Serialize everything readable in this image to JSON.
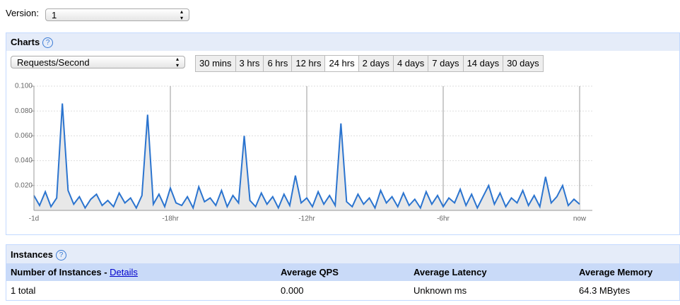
{
  "version": {
    "label": "Version:",
    "selected": "1"
  },
  "charts_panel": {
    "title": "Charts",
    "help": "?",
    "metric": "Requests/Second",
    "ranges": [
      "30 mins",
      "3 hrs",
      "6 hrs",
      "12 hrs",
      "24 hrs",
      "2 days",
      "4 days",
      "7 days",
      "14 days",
      "30 days"
    ]
  },
  "chart_data": {
    "type": "line",
    "color": "#2b74cf",
    "grid": true,
    "x": [
      -24,
      -23.75,
      -23.5,
      -23.25,
      -23,
      -22.75,
      -22.5,
      -22.25,
      -22,
      -21.75,
      -21.5,
      -21.25,
      -21,
      -20.75,
      -20.5,
      -20.25,
      -20,
      -19.75,
      -19.5,
      -19.25,
      -19,
      -18.75,
      -18.5,
      -18.25,
      -18,
      -17.75,
      -17.5,
      -17.25,
      -17,
      -16.75,
      -16.5,
      -16.25,
      -16,
      -15.75,
      -15.5,
      -15.25,
      -15,
      -14.75,
      -14.5,
      -14.25,
      -14,
      -13.75,
      -13.5,
      -13.25,
      -13,
      -12.75,
      -12.5,
      -12.25,
      -12,
      -11.75,
      -11.5,
      -11.25,
      -11,
      -10.75,
      -10.5,
      -10.25,
      -10,
      -9.75,
      -9.5,
      -9.25,
      -9,
      -8.75,
      -8.5,
      -8.25,
      -8,
      -7.75,
      -7.5,
      -7.25,
      -7,
      -6.75,
      -6.5,
      -6.25,
      -6,
      -5.75,
      -5.5,
      -5.25,
      -5,
      -4.75,
      -4.5,
      -4.25,
      -4,
      -3.75,
      -3.5,
      -3.25,
      -3,
      -2.75,
      -2.5,
      -2.25,
      -2,
      -1.75,
      -1.5,
      -1.25,
      -1,
      -0.75,
      -0.5,
      -0.25,
      0
    ],
    "values": [
      0.012,
      0.004,
      0.015,
      0.003,
      0.01,
      0.086,
      0.016,
      0.005,
      0.011,
      0.002,
      0.009,
      0.013,
      0.004,
      0.008,
      0.003,
      0.014,
      0.006,
      0.01,
      0.002,
      0.012,
      0.077,
      0.005,
      0.013,
      0.003,
      0.018,
      0.006,
      0.004,
      0.011,
      0.002,
      0.019,
      0.007,
      0.01,
      0.004,
      0.016,
      0.003,
      0.012,
      0.006,
      0.06,
      0.008,
      0.003,
      0.014,
      0.005,
      0.011,
      0.002,
      0.013,
      0.004,
      0.028,
      0.006,
      0.01,
      0.003,
      0.015,
      0.005,
      0.012,
      0.004,
      0.07,
      0.007,
      0.003,
      0.013,
      0.005,
      0.01,
      0.002,
      0.016,
      0.006,
      0.011,
      0.003,
      0.014,
      0.004,
      0.009,
      0.002,
      0.015,
      0.005,
      0.012,
      0.003,
      0.01,
      0.006,
      0.017,
      0.004,
      0.013,
      0.002,
      0.011,
      0.02,
      0.005,
      0.014,
      0.003,
      0.01,
      0.006,
      0.016,
      0.004,
      0.012,
      0.003,
      0.027,
      0.006,
      0.011,
      0.02,
      0.004,
      0.009,
      0.005
    ],
    "xlim": [
      -24,
      0
    ],
    "xticks": [
      {
        "value": -24,
        "label": "-1d"
      },
      {
        "value": -18,
        "label": "-18hr"
      },
      {
        "value": -12,
        "label": "-12hr"
      },
      {
        "value": -6,
        "label": "-6hr"
      },
      {
        "value": 0,
        "label": "now"
      }
    ],
    "ylim": [
      0,
      0.1
    ],
    "yticks": [
      {
        "value": 0.02,
        "label": "0.020"
      },
      {
        "value": 0.04,
        "label": "0.040"
      },
      {
        "value": 0.06,
        "label": "0.060"
      },
      {
        "value": 0.08,
        "label": "0.080"
      },
      {
        "value": 0.1,
        "label": "0.100"
      }
    ]
  },
  "instances_panel": {
    "title": "Instances",
    "help": "?",
    "table": {
      "header": [
        "Number of Instances - ",
        "Average QPS",
        "Average Latency",
        "Average Memory"
      ],
      "details_link": "Details",
      "rows": [
        [
          "1 total",
          "0.000",
          "Unknown ms",
          "64.3 MBytes"
        ]
      ]
    }
  }
}
